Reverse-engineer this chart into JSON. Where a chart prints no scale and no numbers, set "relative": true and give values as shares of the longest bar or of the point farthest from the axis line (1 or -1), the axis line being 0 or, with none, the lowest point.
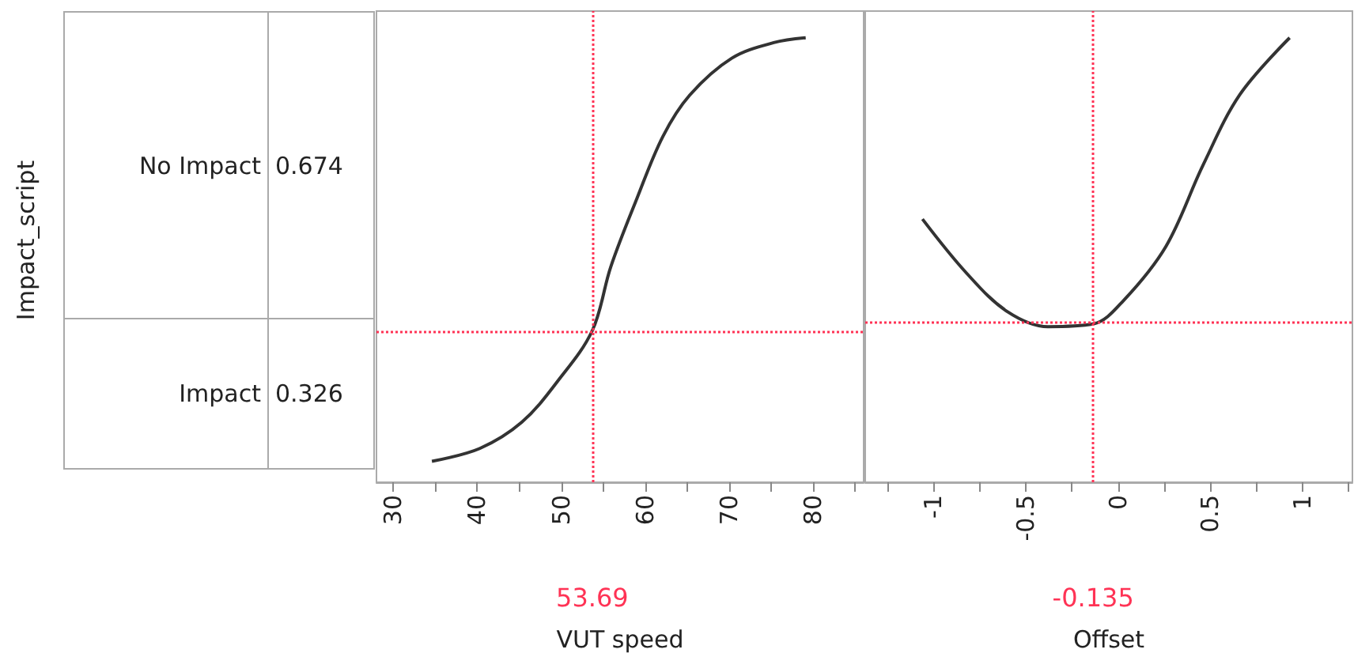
{
  "chart_data": [
    {
      "type": "other",
      "ylabel": "Impact_script",
      "categories": [
        "No Impact",
        "Impact"
      ],
      "values": [
        0.674,
        0.326
      ],
      "data_labels": true
    },
    {
      "type": "line",
      "relative": true,
      "xlabel": "VUT speed",
      "xlim": [
        28,
        86
      ],
      "xticks": [
        30,
        {
          "value": 35,
          "label": null
        },
        40,
        {
          "value": 45,
          "label": null
        },
        50,
        {
          "value": 55,
          "label": null
        },
        60,
        {
          "value": 65,
          "label": null
        },
        70,
        {
          "value": 75,
          "label": null
        },
        80,
        {
          "value": 85,
          "label": null
        }
      ],
      "series": [
        {
          "color": "#333333",
          "x": [
            34.6,
            40.3,
            45.3,
            49.6,
            53.69,
            55.9,
            59.0,
            62.1,
            65.3,
            70.3,
            75.3,
            79.1
          ],
          "values": [
            0.047,
            0.076,
            0.135,
            0.228,
            0.341,
            0.485,
            0.638,
            0.778,
            0.871,
            0.954,
            0.989,
            1
          ]
        }
      ],
      "ref_lines": [
        {
          "axis": "x",
          "value": 53.69,
          "label": "53.69",
          "color": "#ff3355",
          "line_style": "dotted"
        },
        {
          "axis": "y",
          "value": 0.341,
          "label": null,
          "color": "#ff3355",
          "line_style": "dotted"
        }
      ]
    },
    {
      "type": "line",
      "relative": true,
      "xlabel": "Offset",
      "xlim": [
        -1.37,
        1.27
      ],
      "xticks": [
        {
          "value": -1.25,
          "label": null
        },
        -1,
        {
          "value": -0.75,
          "label": null
        },
        -0.5,
        {
          "value": -0.25,
          "label": null
        },
        0,
        {
          "value": 0.25,
          "label": null
        },
        0.5,
        {
          "value": 0.75,
          "label": null
        },
        1,
        {
          "value": 1.25,
          "label": null
        }
      ],
      "series": [
        {
          "color": "#333333",
          "x": [
            -1.06,
            -0.82,
            -0.6,
            -0.38,
            -0.135,
            0.03,
            0.26,
            0.46,
            0.66,
            0.93
          ],
          "values": [
            0.592,
            0.47,
            0.384,
            0.35,
            0.356,
            0.409,
            0.531,
            0.713,
            0.872,
            1
          ]
        }
      ],
      "ref_lines": [
        {
          "axis": "x",
          "value": -0.135,
          "label": "-0.135",
          "color": "#ff3355",
          "line_style": "dotted"
        },
        {
          "axis": "y",
          "value": 0.356,
          "label": null,
          "color": "#ff3355",
          "line_style": "dotted"
        }
      ]
    }
  ]
}
